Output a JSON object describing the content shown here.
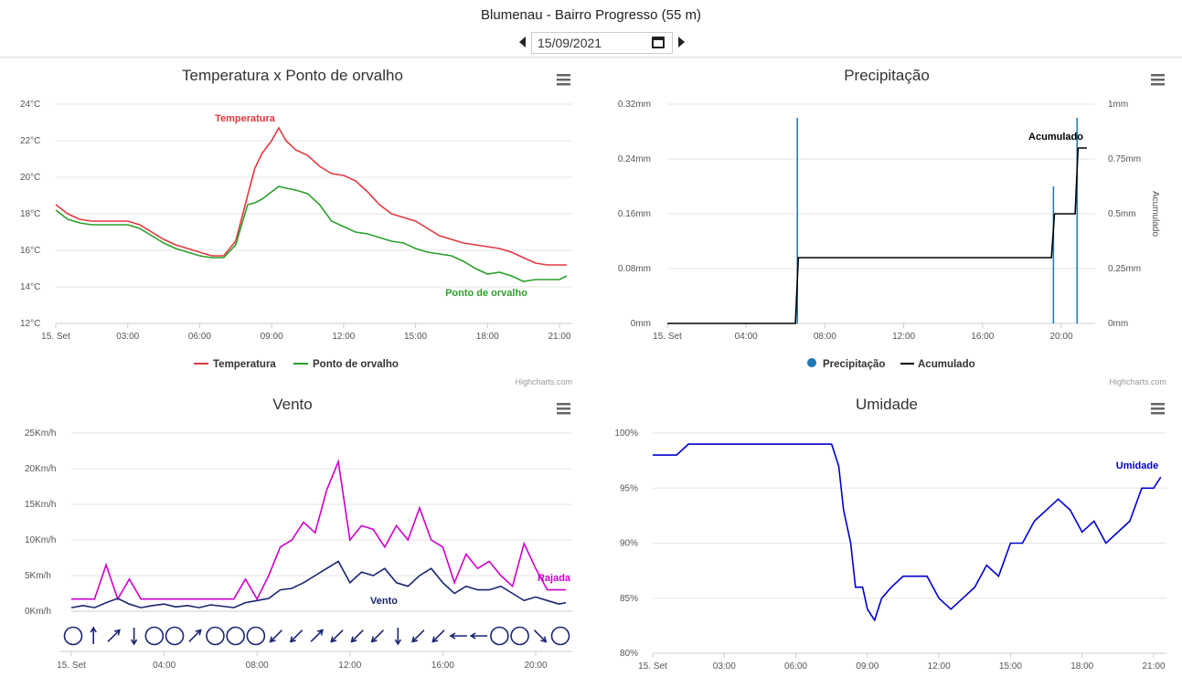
{
  "header": {
    "title": "Blumenau - Bairro Progresso (55 m)"
  },
  "date_picker": {
    "value": "15/09/2021"
  },
  "credits": "Highcharts.com",
  "colors": {
    "temperature": "#e0393e",
    "dewpoint": "#2ca02c",
    "precip": "#1f77b4",
    "accum": "#000000",
    "wind": "#1b2470",
    "gust": "#cc00cc",
    "humidity": "#0000cc"
  },
  "chart_data": [
    {
      "type": "line",
      "title": "Temperatura x Ponto de orvalho",
      "x_ticks": [
        "15. Set",
        "03:00",
        "06:00",
        "09:00",
        "12:00",
        "15:00",
        "18:00",
        "21:00"
      ],
      "ylim": [
        12,
        24
      ],
      "y_ticks": [
        "12°C",
        "14°C",
        "16°C",
        "18°C",
        "20°C",
        "22°C",
        "24°C"
      ],
      "series": [
        {
          "name": "Temperatura",
          "x": [
            0,
            0.5,
            1,
            1.5,
            2,
            2.5,
            3,
            3.5,
            4,
            4.5,
            5,
            5.5,
            6,
            6.5,
            7,
            7.5,
            8,
            8.3,
            8.6,
            9,
            9.3,
            9.6,
            10,
            10.5,
            11,
            11.5,
            12,
            12.5,
            13,
            13.5,
            14,
            14.5,
            15,
            15.5,
            16,
            16.5,
            17,
            17.5,
            18,
            18.5,
            19,
            19.5,
            20,
            20.5,
            21,
            21.3
          ],
          "values": [
            18.5,
            18,
            17.7,
            17.6,
            17.6,
            17.6,
            17.6,
            17.4,
            17,
            16.6,
            16.3,
            16.1,
            15.9,
            15.7,
            15.7,
            16.5,
            19,
            20.5,
            21.3,
            22,
            22.7,
            22,
            21.5,
            21.2,
            20.6,
            20.2,
            20.1,
            19.8,
            19.2,
            18.5,
            18,
            17.8,
            17.6,
            17.2,
            16.8,
            16.6,
            16.4,
            16.3,
            16.2,
            16.1,
            15.9,
            15.6,
            15.3,
            15.2,
            15.2,
            15.2
          ]
        },
        {
          "name": "Ponto de orvalho",
          "x": [
            0,
            0.5,
            1,
            1.5,
            2,
            2.5,
            3,
            3.5,
            4,
            4.5,
            5,
            5.5,
            6,
            6.5,
            7,
            7.5,
            8,
            8.3,
            8.6,
            9,
            9.3,
            9.6,
            10,
            10.5,
            11,
            11.5,
            12,
            12.5,
            13,
            13.5,
            14,
            14.5,
            15,
            15.5,
            16,
            16.5,
            17,
            17.5,
            18,
            18.5,
            19,
            19.5,
            20,
            20.5,
            21,
            21.3
          ],
          "values": [
            18.2,
            17.7,
            17.5,
            17.4,
            17.4,
            17.4,
            17.4,
            17.2,
            16.8,
            16.4,
            16.1,
            15.9,
            15.7,
            15.6,
            15.6,
            16.3,
            18.5,
            18.6,
            18.8,
            19.2,
            19.5,
            19.4,
            19.3,
            19.1,
            18.5,
            17.6,
            17.3,
            17,
            16.9,
            16.7,
            16.5,
            16.4,
            16.1,
            15.9,
            15.8,
            15.7,
            15.4,
            15,
            14.7,
            14.8,
            14.6,
            14.3,
            14.4,
            14.4,
            14.4,
            14.6
          ]
        }
      ],
      "data_labels": [
        "Temperatura",
        "Ponto de orvalho"
      ]
    },
    {
      "type": "line",
      "title": "Precipitação",
      "x_ticks": [
        "15. Set",
        "04:00",
        "08:00",
        "12:00",
        "16:00",
        "20:00"
      ],
      "y_ticks_left": [
        "0mm",
        "0.08mm",
        "0.16mm",
        "0.24mm",
        "0.32mm"
      ],
      "y_ticks_right": [
        "0mm",
        "0.25mm",
        "0.5mm",
        "0.75mm",
        "1mm"
      ],
      "ylabel_right": "Acumulado",
      "ylim_left": [
        0,
        0.32
      ],
      "ylim_right": [
        0,
        1
      ],
      "series": [
        {
          "name": "Precipitação",
          "x": [
            6.6,
            19.6,
            20.8
          ],
          "values": [
            0.3,
            0.2,
            0.3
          ]
        },
        {
          "name": "Acumulado",
          "x": [
            0,
            6.5,
            6.65,
            19.5,
            19.65,
            20.7,
            20.85,
            21.3
          ],
          "values": [
            0,
            0,
            0.3,
            0.3,
            0.5,
            0.5,
            0.8,
            0.8
          ]
        }
      ],
      "data_labels": [
        "Acumulado"
      ],
      "legend": [
        "Precipitação",
        "Acumulado"
      ]
    },
    {
      "type": "line",
      "title": "Vento",
      "x_ticks": [
        "15. Set",
        "04:00",
        "08:00",
        "12:00",
        "16:00",
        "20:00"
      ],
      "ylim": [
        0,
        25
      ],
      "y_ticks": [
        "0Km/h",
        "5Km/h",
        "10Km/h",
        "15Km/h",
        "20Km/h",
        "25Km/h"
      ],
      "series": [
        {
          "name": "Vento",
          "x": [
            0,
            0.5,
            1,
            1.5,
            2,
            2.5,
            3,
            3.5,
            4,
            4.5,
            5,
            5.5,
            6,
            6.5,
            7,
            7.5,
            8,
            8.5,
            9,
            9.5,
            10,
            10.5,
            11,
            11.5,
            12,
            12.5,
            13,
            13.5,
            14,
            14.5,
            15,
            15.5,
            16,
            16.5,
            17,
            17.5,
            18,
            18.5,
            19,
            19.5,
            20,
            20.5,
            21,
            21.3
          ],
          "values": [
            0.5,
            0.8,
            0.5,
            1.2,
            1.8,
            1,
            0.5,
            0.8,
            1,
            0.6,
            0.8,
            0.5,
            0.9,
            0.7,
            0.5,
            1.2,
            1.5,
            1.8,
            3,
            3.2,
            4,
            5,
            6,
            7,
            4,
            5.5,
            5,
            6,
            4,
            3.5,
            5,
            6,
            4,
            2.5,
            3.5,
            3,
            3,
            3.5,
            2.5,
            1.5,
            2,
            1.5,
            1,
            1.2
          ]
        },
        {
          "name": "Rajada",
          "x": [
            0,
            0.5,
            1,
            1.5,
            2,
            2.5,
            3,
            3.5,
            4,
            4.5,
            5,
            5.5,
            6,
            6.5,
            7,
            7.5,
            8,
            8.5,
            9,
            9.5,
            10,
            10.5,
            11,
            11.5,
            12,
            12.5,
            13,
            13.5,
            14,
            14.5,
            15,
            15.5,
            16,
            16.5,
            17,
            17.5,
            18,
            18.5,
            19,
            19.5,
            20,
            20.5,
            21,
            21.3
          ],
          "values": [
            1.7,
            1.7,
            1.7,
            6.5,
            1.7,
            4.5,
            1.7,
            1.7,
            1.7,
            1.7,
            1.7,
            1.7,
            1.7,
            1.7,
            1.7,
            4.5,
            1.7,
            5,
            9,
            10,
            12.5,
            11,
            17,
            21,
            10,
            12,
            11.5,
            9,
            12,
            10,
            14.5,
            10,
            9,
            4,
            8,
            6,
            7,
            5,
            3.5,
            9.5,
            6,
            3,
            3,
            3
          ]
        }
      ],
      "data_labels": [
        "Rajada",
        "Vento"
      ],
      "wind_directions": [
        "calm",
        "N",
        "NE",
        "S",
        "calm",
        "calm",
        "NE",
        "calm",
        "calm",
        "calm",
        "SW",
        "SW",
        "NE",
        "SW",
        "SW",
        "SW",
        "S",
        "SW",
        "SW",
        "W",
        "W",
        "calm",
        "calm",
        "SE",
        "calm"
      ]
    },
    {
      "type": "line",
      "title": "Umidade",
      "x_ticks": [
        "15. Set",
        "03:00",
        "06:00",
        "09:00",
        "12:00",
        "15:00",
        "18:00",
        "21:00"
      ],
      "ylim": [
        80,
        100
      ],
      "y_ticks": [
        "80%",
        "85%",
        "90%",
        "95%",
        "100%"
      ],
      "series": [
        {
          "name": "Umidade",
          "x": [
            0,
            0.5,
            1,
            1.5,
            2,
            3,
            4,
            5,
            6,
            7,
            7.5,
            7.8,
            8,
            8.3,
            8.5,
            8.8,
            9,
            9.3,
            9.6,
            10,
            10.5,
            11,
            11.5,
            12,
            12.5,
            13,
            13.5,
            14,
            14.5,
            15,
            15.5,
            16,
            16.5,
            17,
            17.5,
            18,
            18.5,
            19,
            19.5,
            20,
            20.5,
            21,
            21.3
          ],
          "values": [
            98,
            98,
            98,
            99,
            99,
            99,
            99,
            99,
            99,
            99,
            99,
            97,
            93,
            90,
            86,
            86,
            84,
            83,
            85,
            86,
            87,
            87,
            87,
            85,
            84,
            85,
            86,
            88,
            87,
            90,
            90,
            92,
            93,
            94,
            93,
            91,
            92,
            90,
            91,
            92,
            95,
            95,
            96
          ]
        }
      ],
      "data_labels": [
        "Umidade"
      ]
    }
  ]
}
